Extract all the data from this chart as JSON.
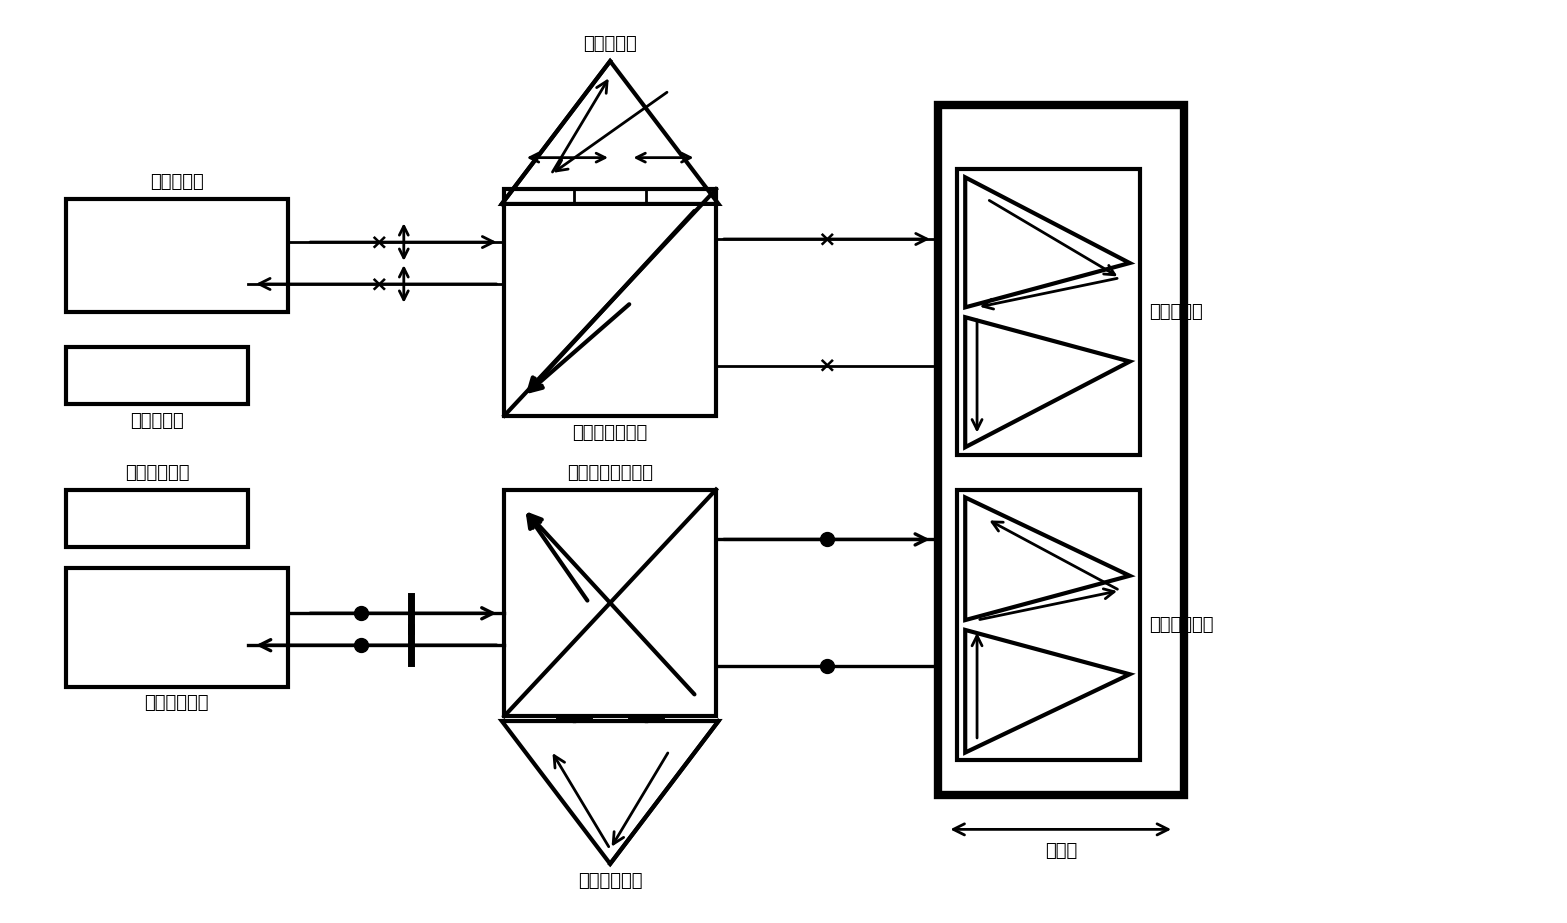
{
  "bg_color": "#ffffff",
  "fig_width": 15.67,
  "fig_height": 9.23,
  "labels": {
    "std_laser": "标准激光器",
    "std_receiver": "标准接收器",
    "std_pbs": "标准偏振分光镜",
    "std_ref": "标准参考镜",
    "std_meas": "标准测量镜",
    "cal_laser": "被校准激光器",
    "cal_receiver": "被校准接收器",
    "cal_pbs": "被校准偏振分光镜",
    "cal_ref": "被校准参考镜",
    "cal_meas": "被校准测量镜",
    "motion_stage": "运动台"
  },
  "font_size": 13,
  "lw": 2.0
}
